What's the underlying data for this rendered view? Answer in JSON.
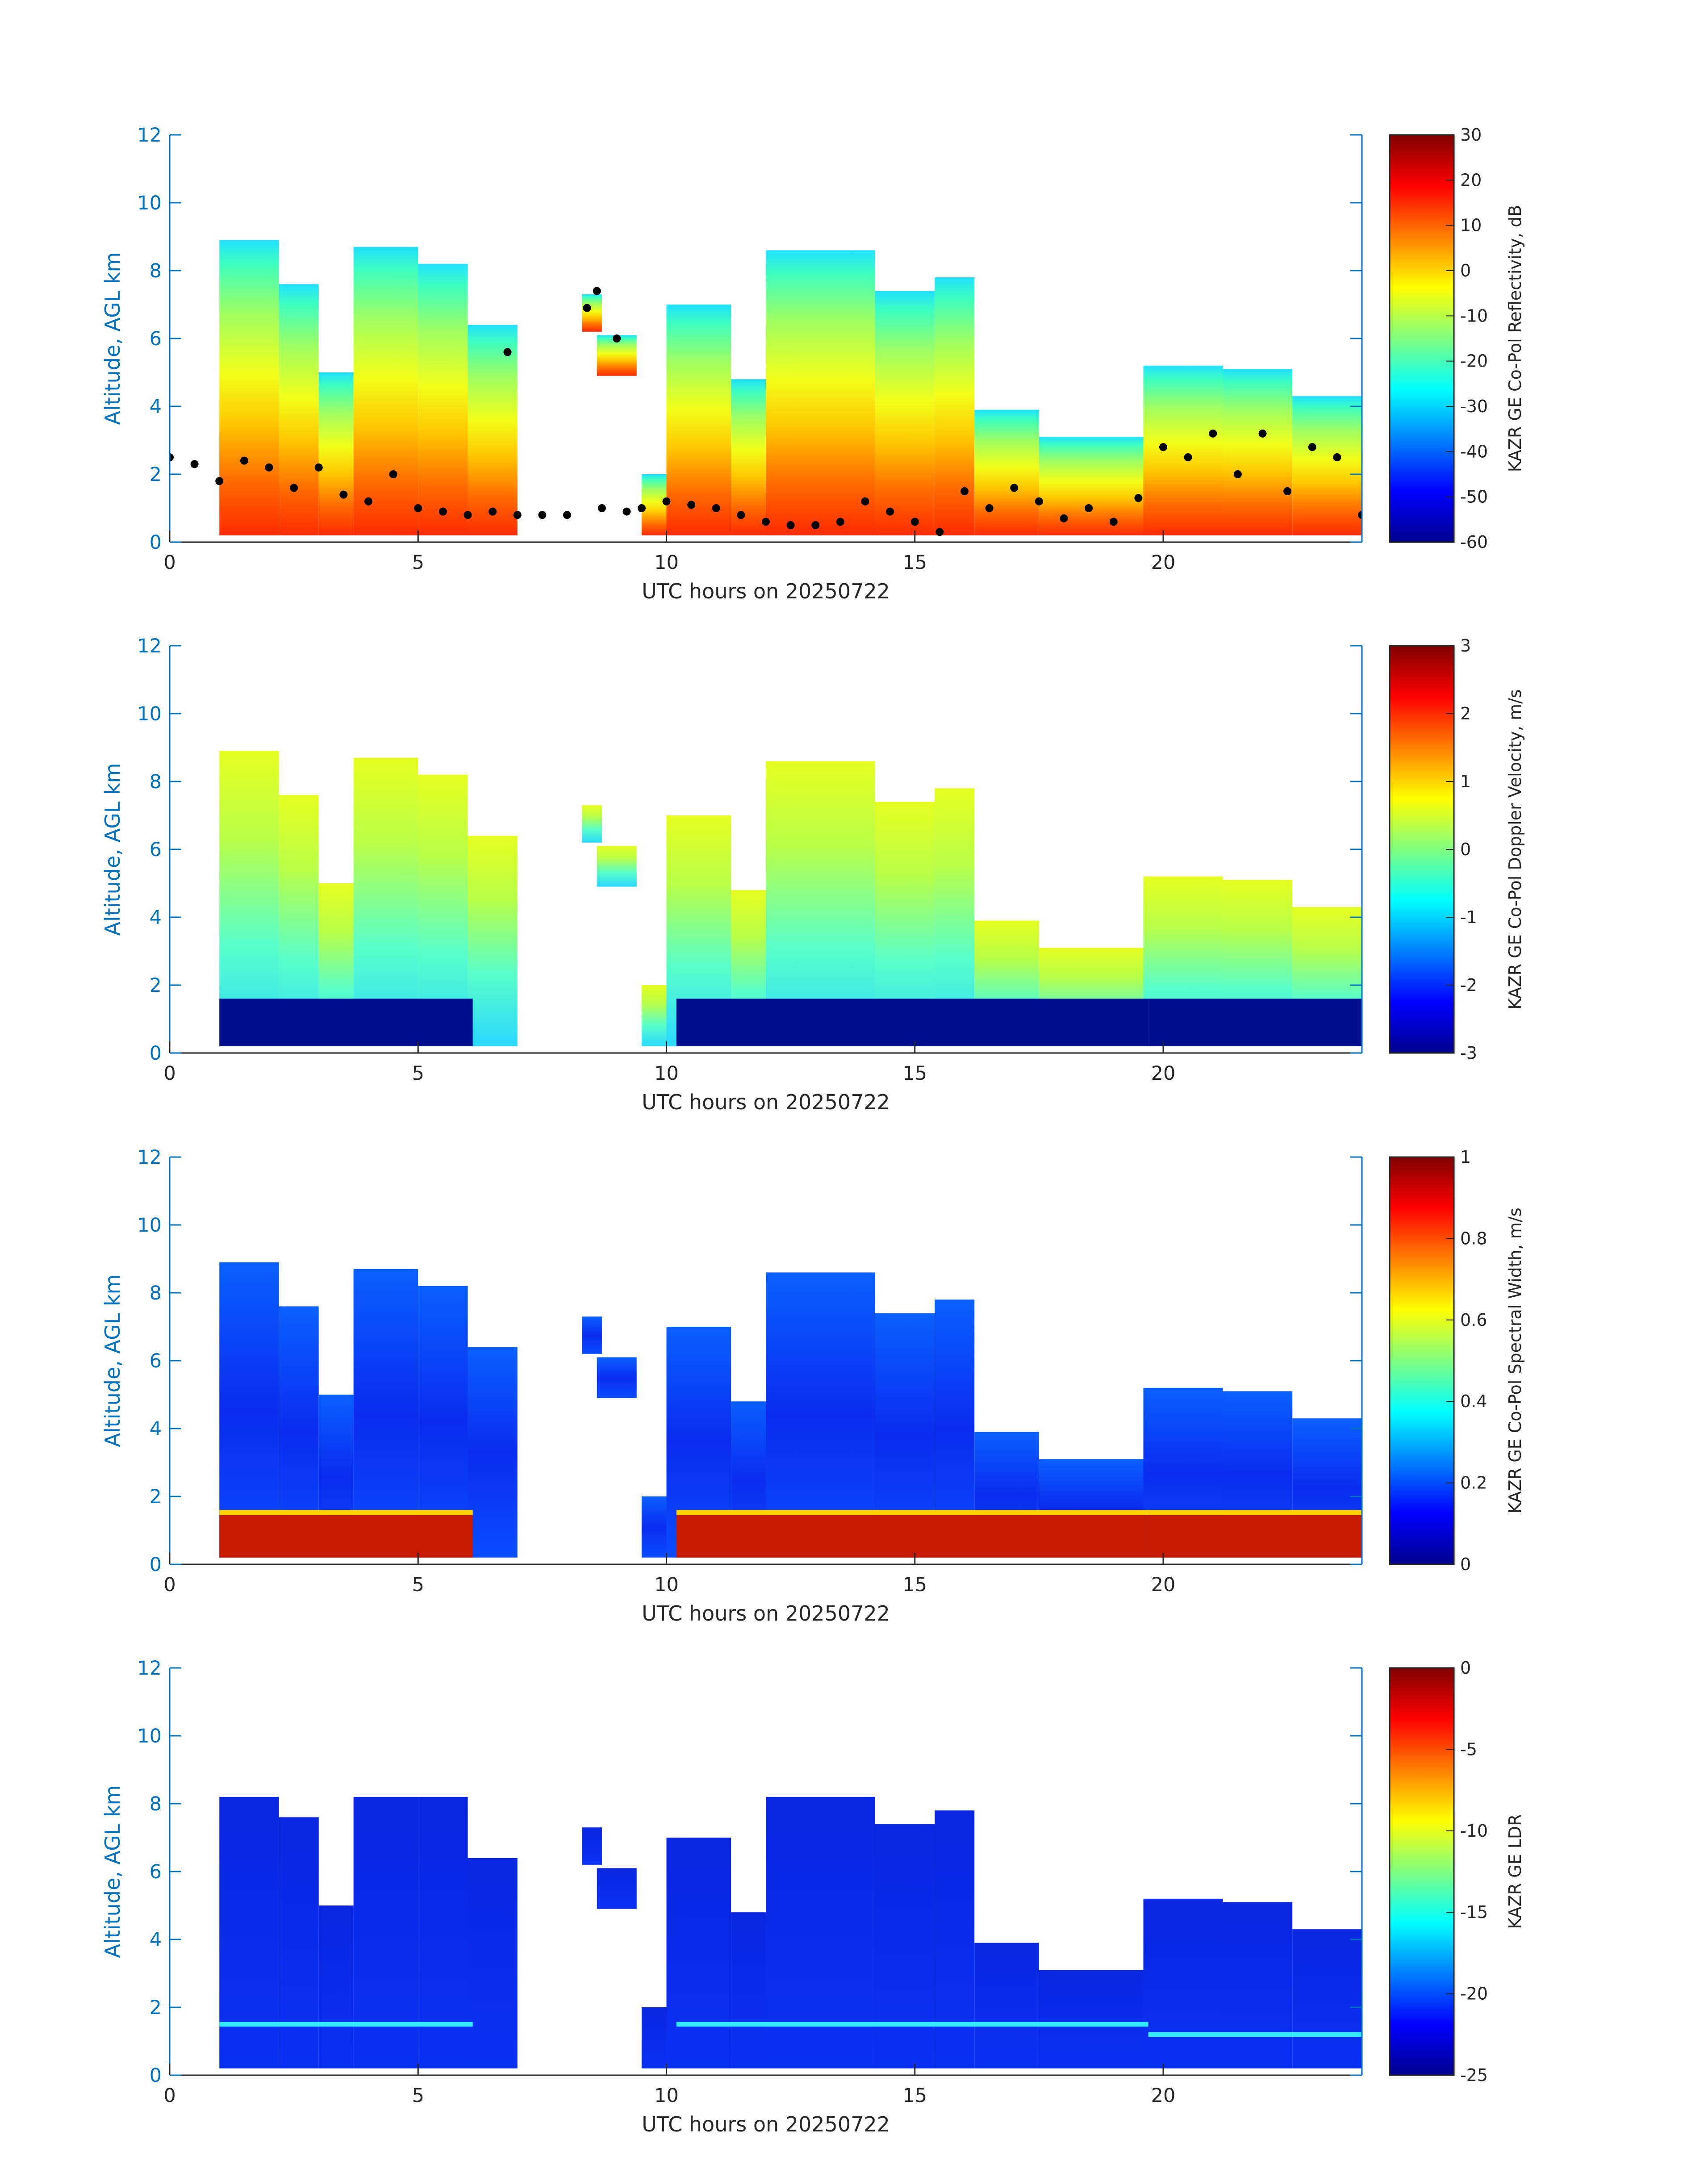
{
  "figure": {
    "chart_data": [
      {
        "type": "heatmap",
        "xlabel": "UTC hours on 20250722",
        "ylabel": "Altitude, AGL km",
        "xlim": [
          0,
          24
        ],
        "ylim": [
          0,
          12
        ],
        "xticks": [
          "0",
          "5",
          "10",
          "15",
          "20"
        ],
        "yticks": [
          "0",
          "2",
          "4",
          "6",
          "8",
          "10",
          "12"
        ],
        "colorbar": {
          "label": "KAZR GE Co-Pol Reflectivity, dB",
          "range": [
            -60,
            30
          ],
          "ticks": [
            "30",
            "20",
            "10",
            "0",
            "-10",
            "-20",
            "-30",
            "-40",
            "-50",
            "-60"
          ],
          "colormap": "jet"
        },
        "overlay": "black dots: cloud base height (km)"
      },
      {
        "type": "heatmap",
        "xlabel": "UTC hours on 20250722",
        "ylabel": "Altitude, AGL km",
        "xlim": [
          0,
          24
        ],
        "ylim": [
          0,
          12
        ],
        "xticks": [
          "0",
          "5",
          "10",
          "15",
          "20"
        ],
        "yticks": [
          "0",
          "2",
          "4",
          "6",
          "8",
          "10",
          "12"
        ],
        "colorbar": {
          "label": "KAZR GE Co-Pol Doppler Velocity, m/s",
          "range": [
            -3,
            3
          ],
          "ticks": [
            "3",
            "2",
            "1",
            "0",
            "-1",
            "-2",
            "-3"
          ],
          "colormap": "jet"
        }
      },
      {
        "type": "heatmap",
        "xlabel": "UTC hours on 20250722",
        "ylabel": "Altitude, AGL km",
        "xlim": [
          0,
          24
        ],
        "ylim": [
          0,
          12
        ],
        "xticks": [
          "0",
          "5",
          "10",
          "15",
          "20"
        ],
        "yticks": [
          "0",
          "2",
          "4",
          "6",
          "8",
          "10",
          "12"
        ],
        "colorbar": {
          "label": "KAZR GE Co-Pol Spectral Width, m/s",
          "range": [
            0,
            1
          ],
          "ticks": [
            "1",
            "0.8",
            "0.6",
            "0.4",
            "0.2",
            "0"
          ],
          "colormap": "jet"
        }
      },
      {
        "type": "heatmap",
        "xlabel": "UTC hours on 20250722",
        "ylabel": "Altitude, AGL km",
        "xlim": [
          0,
          24
        ],
        "ylim": [
          0,
          12
        ],
        "xticks": [
          "0",
          "5",
          "10",
          "15",
          "20"
        ],
        "yticks": [
          "0",
          "2",
          "4",
          "6",
          "8",
          "10",
          "12"
        ],
        "colorbar": {
          "label": "KAZR GE LDR",
          "range": [
            -25,
            0
          ],
          "ticks": [
            "0",
            "-5",
            "-10",
            "-15",
            "-20",
            "-25"
          ],
          "colormap": "jet"
        }
      }
    ],
    "echo_segments": [
      {
        "x0": 1.0,
        "x1": 2.2,
        "top": 8.9
      },
      {
        "x0": 2.2,
        "x1": 3.0,
        "top": 7.6
      },
      {
        "x0": 3.0,
        "x1": 3.7,
        "top": 5.0
      },
      {
        "x0": 3.7,
        "x1": 5.0,
        "top": 8.7
      },
      {
        "x0": 5.0,
        "x1": 6.0,
        "top": 8.2
      },
      {
        "x0": 6.0,
        "x1": 7.0,
        "top": 6.4
      },
      {
        "x0": 8.3,
        "x1": 8.7,
        "top": 7.3,
        "bottom": 6.2
      },
      {
        "x0": 8.6,
        "x1": 9.4,
        "top": 6.1,
        "bottom": 4.9
      },
      {
        "x0": 9.5,
        "x1": 10.0,
        "top": 2.0
      },
      {
        "x0": 10.0,
        "x1": 11.3,
        "top": 7.0
      },
      {
        "x0": 11.3,
        "x1": 12.0,
        "top": 4.8
      },
      {
        "x0": 12.0,
        "x1": 14.2,
        "top": 8.6
      },
      {
        "x0": 14.2,
        "x1": 15.4,
        "top": 7.4
      },
      {
        "x0": 15.4,
        "x1": 16.2,
        "top": 7.8
      },
      {
        "x0": 16.2,
        "x1": 17.5,
        "top": 3.9
      },
      {
        "x0": 17.5,
        "x1": 19.6,
        "top": 3.1
      },
      {
        "x0": 19.6,
        "x1": 21.2,
        "top": 5.2
      },
      {
        "x0": 21.2,
        "x1": 22.6,
        "top": 5.1
      },
      {
        "x0": 22.6,
        "x1": 24.0,
        "top": 4.3
      }
    ],
    "cloud_base_km": [
      [
        0.0,
        2.5
      ],
      [
        0.5,
        2.3
      ],
      [
        1.0,
        1.8
      ],
      [
        1.5,
        2.4
      ],
      [
        2.0,
        2.2
      ],
      [
        2.5,
        1.6
      ],
      [
        3.0,
        2.2
      ],
      [
        3.5,
        1.4
      ],
      [
        4.0,
        1.2
      ],
      [
        4.5,
        2.0
      ],
      [
        5.0,
        1.0
      ],
      [
        5.5,
        0.9
      ],
      [
        6.0,
        0.8
      ],
      [
        6.5,
        0.9
      ],
      [
        6.8,
        5.6
      ],
      [
        7.0,
        0.8
      ],
      [
        7.5,
        0.8
      ],
      [
        8.0,
        0.8
      ],
      [
        8.4,
        6.9
      ],
      [
        8.6,
        7.4
      ],
      [
        8.7,
        1.0
      ],
      [
        9.0,
        6.0
      ],
      [
        9.2,
        0.9
      ],
      [
        9.5,
        1.0
      ],
      [
        10.0,
        1.2
      ],
      [
        10.5,
        1.1
      ],
      [
        11.0,
        1.0
      ],
      [
        11.5,
        0.8
      ],
      [
        12.0,
        0.6
      ],
      [
        12.5,
        0.5
      ],
      [
        13.0,
        0.5
      ],
      [
        13.5,
        0.6
      ],
      [
        14.0,
        1.2
      ],
      [
        14.5,
        0.9
      ],
      [
        15.0,
        0.6
      ],
      [
        15.5,
        0.3
      ],
      [
        16.0,
        1.5
      ],
      [
        16.5,
        1.0
      ],
      [
        17.0,
        1.6
      ],
      [
        17.5,
        1.2
      ],
      [
        18.0,
        0.7
      ],
      [
        18.5,
        1.0
      ],
      [
        19.0,
        0.6
      ],
      [
        19.5,
        1.3
      ],
      [
        20.0,
        2.8
      ],
      [
        20.5,
        2.5
      ],
      [
        21.0,
        3.2
      ],
      [
        21.5,
        2.0
      ],
      [
        22.0,
        3.2
      ],
      [
        22.5,
        1.5
      ],
      [
        23.0,
        2.8
      ],
      [
        23.5,
        2.5
      ],
      [
        24.0,
        0.8
      ]
    ]
  }
}
